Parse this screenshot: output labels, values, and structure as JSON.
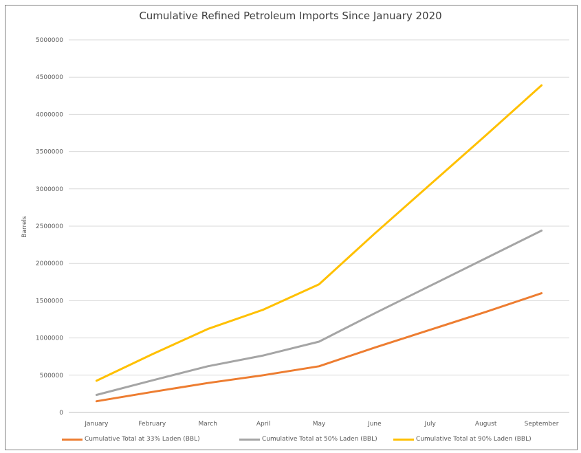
{
  "chart_data": {
    "type": "line",
    "title": "Cumulative Refined Petroleum Imports Since January 2020",
    "xlabel": "",
    "ylabel": "Barrels",
    "categories": [
      "January",
      "February",
      "March",
      "April",
      "May",
      "June",
      "July",
      "August",
      "September"
    ],
    "ylim": [
      0,
      5000000
    ],
    "yticks": [
      "0",
      "500000",
      "1000000",
      "1500000",
      "2000000",
      "2500000",
      "3000000",
      "3500000",
      "4000000",
      "4500000",
      "5000000"
    ],
    "grid": true,
    "legend_position": "bottom",
    "series": [
      {
        "name": "Cumulative Total at 33% Laden (BBL)",
        "color": "#ed7d31",
        "values": [
          150000,
          275000,
          395000,
          500000,
          620000,
          870000,
          1110000,
          1350000,
          1600000
        ]
      },
      {
        "name": "Cumulative Total at 50% Laden (BBL)",
        "color": "#a5a5a5",
        "values": [
          235000,
          430000,
          620000,
          765000,
          950000,
          1330000,
          1700000,
          2070000,
          2440000
        ]
      },
      {
        "name": "Cumulative Total at 90% Laden (BBL)",
        "color": "#ffc000",
        "values": [
          425000,
          780000,
          1120000,
          1380000,
          1720000,
          2400000,
          3060000,
          3720000,
          4390000
        ]
      }
    ]
  }
}
